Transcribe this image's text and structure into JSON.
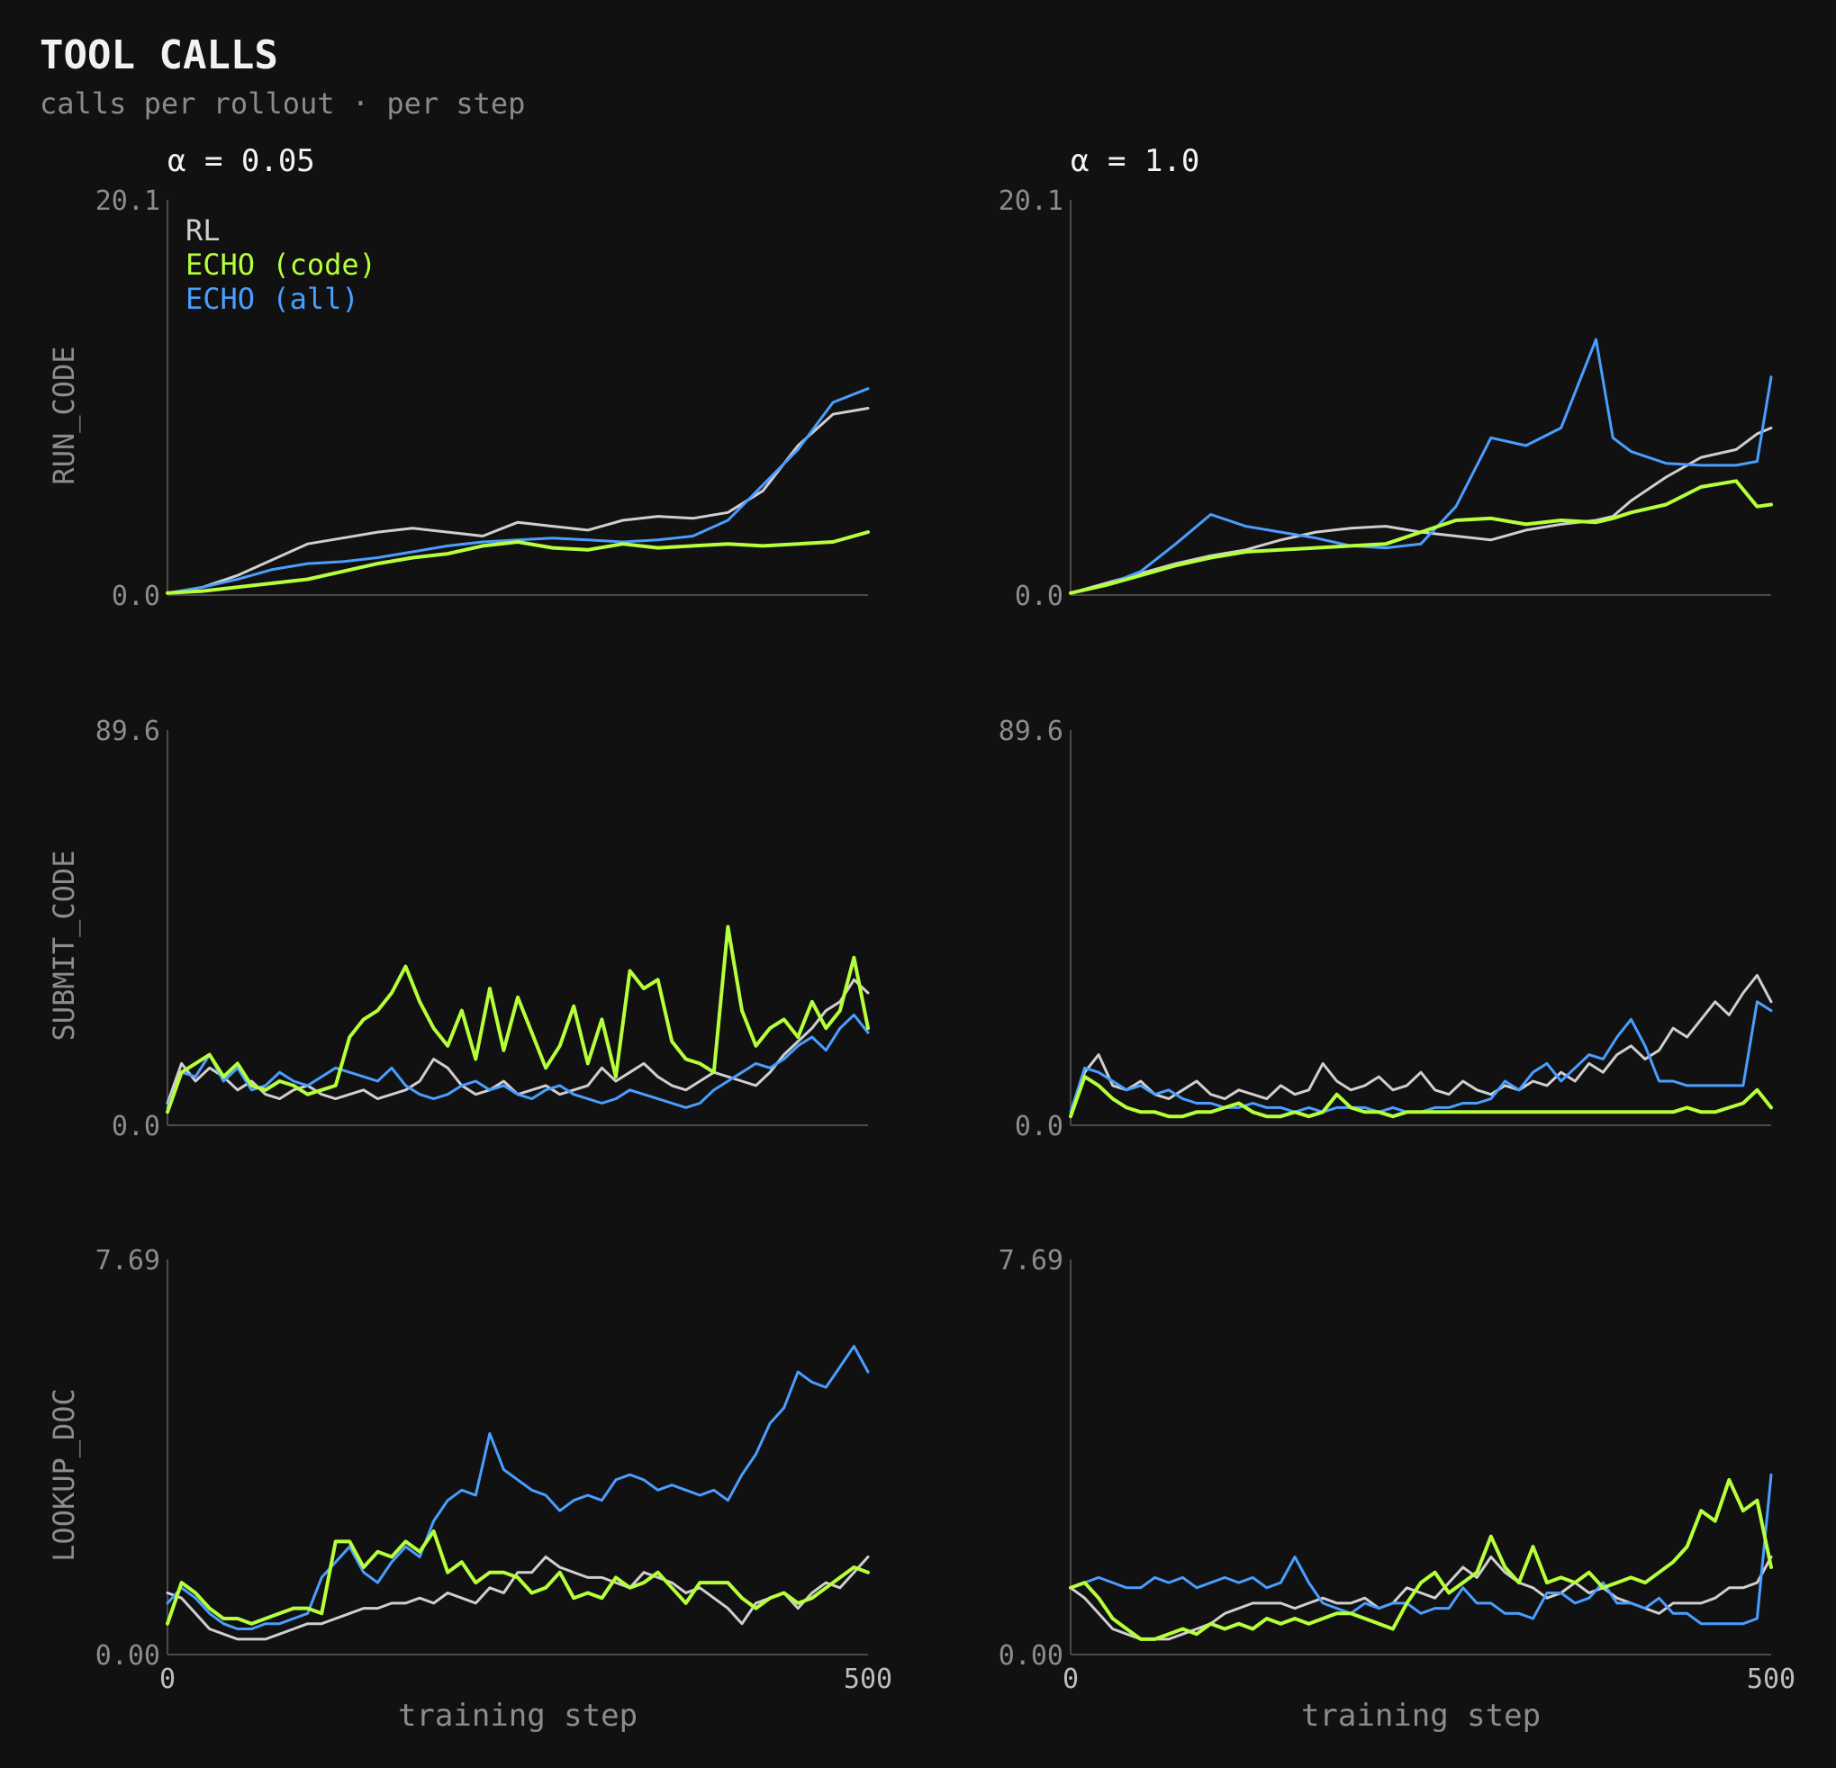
{
  "header": {
    "title": "TOOL CALLS",
    "subtitle": "calls per rollout · per step"
  },
  "colors": {
    "background": "#111111",
    "RL": "#cfcfcf",
    "ECHO (code)": "#b6ff3b",
    "ECHO (all)": "#4a9eff"
  },
  "legend": {
    "position": "top-left",
    "items": [
      "RL",
      "ECHO (code)",
      "ECHO (all)"
    ]
  },
  "chart_data": [
    {
      "type": "line",
      "col_title": "α = 0.05",
      "ylabel": "RUN_CODE",
      "xlabel": "",
      "xlim": [
        0,
        500
      ],
      "ylim": [
        0,
        20.1
      ],
      "xticks": [
        "0",
        "500"
      ],
      "yticks": [
        "0.0",
        "20.1"
      ],
      "x": [
        0,
        25,
        50,
        75,
        100,
        125,
        150,
        175,
        200,
        225,
        250,
        275,
        300,
        325,
        350,
        375,
        400,
        425,
        450,
        475,
        500
      ],
      "series": [
        {
          "name": "RL",
          "values": [
            0.1,
            0.4,
            1.0,
            1.8,
            2.6,
            2.9,
            3.2,
            3.4,
            3.2,
            3.0,
            3.7,
            3.5,
            3.3,
            3.8,
            4.0,
            3.9,
            4.2,
            5.3,
            7.6,
            9.2,
            9.5
          ]
        },
        {
          "name": "ECHO (code)",
          "values": [
            0.1,
            0.2,
            0.4,
            0.6,
            0.8,
            1.2,
            1.6,
            1.9,
            2.1,
            2.5,
            2.7,
            2.4,
            2.3,
            2.6,
            2.4,
            2.5,
            2.6,
            2.5,
            2.6,
            2.7,
            3.2
          ]
        },
        {
          "name": "ECHO (all)",
          "values": [
            0.1,
            0.4,
            0.8,
            1.3,
            1.6,
            1.7,
            1.9,
            2.2,
            2.5,
            2.7,
            2.8,
            2.9,
            2.8,
            2.7,
            2.8,
            3.0,
            3.8,
            5.6,
            7.4,
            9.8,
            10.5
          ]
        }
      ]
    },
    {
      "type": "line",
      "col_title": "α = 1.0",
      "ylabel": "",
      "xlabel": "",
      "xlim": [
        0,
        500
      ],
      "ylim": [
        0,
        20.1
      ],
      "xticks": [
        "0",
        "500"
      ],
      "yticks": [
        "0.0",
        "20.1"
      ],
      "x": [
        0,
        25,
        50,
        75,
        100,
        125,
        150,
        175,
        200,
        225,
        250,
        275,
        300,
        325,
        350,
        375,
        387,
        400,
        425,
        450,
        475,
        490,
        500
      ],
      "series": [
        {
          "name": "RL",
          "values": [
            0.1,
            0.6,
            1.1,
            1.6,
            2.0,
            2.3,
            2.8,
            3.2,
            3.4,
            3.5,
            3.2,
            3.0,
            2.8,
            3.3,
            3.6,
            3.8,
            4.0,
            4.8,
            6.0,
            7.0,
            7.4,
            8.2,
            8.5
          ]
        },
        {
          "name": "ECHO (code)",
          "values": [
            0.1,
            0.5,
            1.0,
            1.5,
            1.9,
            2.2,
            2.3,
            2.4,
            2.5,
            2.6,
            3.2,
            3.8,
            3.9,
            3.6,
            3.8,
            3.7,
            3.9,
            4.2,
            4.6,
            5.5,
            5.8,
            4.5,
            4.6
          ]
        },
        {
          "name": "ECHO (all)",
          "values": [
            0.1,
            0.5,
            1.2,
            2.6,
            4.1,
            3.5,
            3.2,
            2.9,
            2.5,
            2.4,
            2.6,
            4.5,
            8.0,
            7.6,
            8.5,
            13.0,
            8.0,
            7.3,
            6.7,
            6.6,
            6.6,
            6.8,
            11.1
          ]
        }
      ]
    },
    {
      "type": "line",
      "col_title": "",
      "ylabel": "SUBMIT_CODE",
      "xlabel": "",
      "xlim": [
        0,
        500
      ],
      "ylim": [
        0,
        89.6
      ],
      "xticks": [
        "0",
        "500"
      ],
      "yticks": [
        "0.0",
        "89.6"
      ],
      "x": [
        0,
        10,
        20,
        30,
        40,
        50,
        60,
        70,
        80,
        90,
        100,
        110,
        120,
        130,
        140,
        150,
        160,
        170,
        180,
        190,
        200,
        210,
        220,
        230,
        240,
        250,
        260,
        270,
        280,
        290,
        300,
        310,
        320,
        330,
        340,
        350,
        360,
        370,
        380,
        390,
        400,
        410,
        420,
        430,
        440,
        450,
        460,
        470,
        480,
        490,
        500
      ],
      "series": [
        {
          "name": "RL",
          "values": [
            5,
            14,
            10,
            13,
            11,
            8,
            10,
            7,
            6,
            8,
            9,
            7,
            6,
            7,
            8,
            6,
            7,
            8,
            10,
            15,
            13,
            9,
            7,
            8,
            10,
            7,
            8,
            9,
            7,
            8,
            9,
            13,
            10,
            12,
            14,
            11,
            9,
            8,
            10,
            12,
            11,
            10,
            9,
            12,
            16,
            19,
            22,
            26,
            28,
            33,
            30
          ]
        },
        {
          "name": "ECHO (code)",
          "values": [
            3,
            12,
            14,
            16,
            11,
            14,
            9,
            8,
            10,
            9,
            7,
            8,
            9,
            20,
            24,
            26,
            30,
            36,
            28,
            22,
            18,
            26,
            15,
            31,
            17,
            29,
            21,
            13,
            18,
            27,
            14,
            24,
            11,
            35,
            31,
            33,
            19,
            15,
            14,
            12,
            45,
            26,
            18,
            22,
            24,
            20,
            28,
            22,
            26,
            38,
            22
          ]
        },
        {
          "name": "ECHO (all)",
          "values": [
            4,
            12,
            11,
            16,
            10,
            13,
            8,
            9,
            12,
            10,
            9,
            11,
            13,
            12,
            11,
            10,
            13,
            9,
            7,
            6,
            7,
            9,
            10,
            8,
            9,
            7,
            6,
            8,
            9,
            7,
            6,
            5,
            6,
            8,
            7,
            6,
            5,
            4,
            5,
            8,
            10,
            12,
            14,
            13,
            15,
            18,
            20,
            17,
            22,
            25,
            21
          ]
        }
      ]
    },
    {
      "type": "line",
      "col_title": "",
      "ylabel": "",
      "xlabel": "",
      "xlim": [
        0,
        500
      ],
      "ylim": [
        0,
        89.6
      ],
      "xticks": [
        "0",
        "500"
      ],
      "yticks": [
        "0.0",
        "89.6"
      ],
      "x": [
        0,
        10,
        20,
        30,
        40,
        50,
        60,
        70,
        80,
        90,
        100,
        110,
        120,
        130,
        140,
        150,
        160,
        170,
        180,
        190,
        200,
        210,
        220,
        230,
        240,
        250,
        260,
        270,
        280,
        290,
        300,
        310,
        320,
        330,
        340,
        350,
        360,
        370,
        380,
        390,
        400,
        410,
        420,
        430,
        440,
        450,
        460,
        470,
        480,
        490,
        500
      ],
      "series": [
        {
          "name": "RL",
          "values": [
            2,
            12,
            16,
            9,
            8,
            10,
            7,
            6,
            8,
            10,
            7,
            6,
            8,
            7,
            6,
            9,
            7,
            8,
            14,
            10,
            8,
            9,
            11,
            8,
            9,
            12,
            8,
            7,
            10,
            8,
            7,
            9,
            8,
            10,
            9,
            12,
            10,
            14,
            12,
            16,
            18,
            15,
            17,
            22,
            20,
            24,
            28,
            25,
            30,
            34,
            28
          ]
        },
        {
          "name": "ECHO (code)",
          "values": [
            2,
            11,
            9,
            6,
            4,
            3,
            3,
            2,
            2,
            3,
            3,
            4,
            5,
            3,
            2,
            2,
            3,
            2,
            3,
            7,
            4,
            3,
            3,
            2,
            3,
            3,
            3,
            3,
            3,
            3,
            3,
            3,
            3,
            3,
            3,
            3,
            3,
            3,
            3,
            3,
            3,
            3,
            3,
            3,
            4,
            3,
            3,
            4,
            5,
            8,
            4
          ]
        },
        {
          "name": "ECHO (all)",
          "values": [
            3,
            13,
            12,
            10,
            8,
            9,
            7,
            8,
            6,
            5,
            5,
            4,
            4,
            5,
            4,
            4,
            3,
            4,
            3,
            4,
            4,
            4,
            3,
            4,
            3,
            3,
            4,
            4,
            5,
            5,
            6,
            10,
            8,
            12,
            14,
            10,
            13,
            16,
            15,
            20,
            24,
            18,
            10,
            10,
            9,
            9,
            9,
            9,
            9,
            28,
            26
          ]
        }
      ]
    },
    {
      "type": "line",
      "col_title": "",
      "ylabel": "LOOKUP_DOC",
      "xlabel": "training step",
      "xlim": [
        0,
        500
      ],
      "ylim": [
        0,
        7.69
      ],
      "xticks": [
        "0",
        "500"
      ],
      "yticks": [
        "0.00",
        "7.69"
      ],
      "x": [
        0,
        10,
        20,
        30,
        40,
        50,
        60,
        70,
        80,
        90,
        100,
        110,
        120,
        130,
        140,
        150,
        160,
        170,
        180,
        190,
        200,
        210,
        220,
        230,
        240,
        250,
        260,
        270,
        280,
        290,
        300,
        310,
        320,
        330,
        340,
        350,
        360,
        370,
        380,
        390,
        400,
        410,
        420,
        430,
        440,
        450,
        460,
        470,
        480,
        490,
        500
      ],
      "series": [
        {
          "name": "RL",
          "values": [
            1.2,
            1.1,
            0.8,
            0.5,
            0.4,
            0.3,
            0.3,
            0.3,
            0.4,
            0.5,
            0.6,
            0.6,
            0.7,
            0.8,
            0.9,
            0.9,
            1.0,
            1.0,
            1.1,
            1.0,
            1.2,
            1.1,
            1.0,
            1.3,
            1.2,
            1.6,
            1.6,
            1.9,
            1.7,
            1.6,
            1.5,
            1.5,
            1.4,
            1.3,
            1.6,
            1.5,
            1.4,
            1.2,
            1.3,
            1.1,
            0.9,
            0.6,
            1.0,
            1.1,
            1.2,
            0.9,
            1.2,
            1.4,
            1.3,
            1.6,
            1.9
          ]
        },
        {
          "name": "ECHO (code)",
          "values": [
            0.6,
            1.4,
            1.2,
            0.9,
            0.7,
            0.7,
            0.6,
            0.7,
            0.8,
            0.9,
            0.9,
            0.8,
            2.2,
            2.2,
            1.7,
            2.0,
            1.9,
            2.2,
            2.0,
            2.4,
            1.6,
            1.8,
            1.4,
            1.6,
            1.6,
            1.5,
            1.2,
            1.3,
            1.6,
            1.1,
            1.2,
            1.1,
            1.5,
            1.3,
            1.4,
            1.6,
            1.3,
            1.0,
            1.4,
            1.4,
            1.4,
            1.1,
            0.9,
            1.1,
            1.2,
            1.0,
            1.1,
            1.3,
            1.5,
            1.7,
            1.6
          ]
        },
        {
          "name": "ECHO (all)",
          "values": [
            1.0,
            1.3,
            1.1,
            0.8,
            0.6,
            0.5,
            0.5,
            0.6,
            0.6,
            0.7,
            0.8,
            1.5,
            1.8,
            2.1,
            1.6,
            1.4,
            1.8,
            2.1,
            1.9,
            2.6,
            3.0,
            3.2,
            3.1,
            4.3,
            3.6,
            3.4,
            3.2,
            3.1,
            2.8,
            3.0,
            3.1,
            3.0,
            3.4,
            3.5,
            3.4,
            3.2,
            3.3,
            3.2,
            3.1,
            3.2,
            3.0,
            3.5,
            3.9,
            4.5,
            4.8,
            5.5,
            5.3,
            5.2,
            5.6,
            6.0,
            5.5
          ]
        }
      ]
    },
    {
      "type": "line",
      "col_title": "",
      "ylabel": "",
      "xlabel": "training step",
      "xlim": [
        0,
        500
      ],
      "ylim": [
        0,
        7.69
      ],
      "xticks": [
        "0",
        "500"
      ],
      "yticks": [
        "0.00",
        "7.69"
      ],
      "x": [
        0,
        10,
        20,
        30,
        40,
        50,
        60,
        70,
        80,
        90,
        100,
        110,
        120,
        130,
        140,
        150,
        160,
        170,
        180,
        190,
        200,
        210,
        220,
        230,
        240,
        250,
        260,
        270,
        280,
        290,
        300,
        310,
        320,
        330,
        340,
        350,
        360,
        370,
        380,
        390,
        400,
        410,
        420,
        430,
        440,
        450,
        460,
        470,
        480,
        490,
        500
      ],
      "series": [
        {
          "name": "RL",
          "values": [
            1.3,
            1.1,
            0.8,
            0.5,
            0.4,
            0.3,
            0.3,
            0.3,
            0.4,
            0.5,
            0.6,
            0.8,
            0.9,
            1.0,
            1.0,
            1.0,
            0.9,
            1.0,
            1.1,
            1.0,
            1.0,
            1.1,
            0.9,
            1.0,
            1.3,
            1.2,
            1.1,
            1.4,
            1.7,
            1.5,
            1.9,
            1.6,
            1.4,
            1.3,
            1.1,
            1.2,
            1.4,
            1.2,
            1.3,
            1.1,
            1.0,
            0.9,
            0.8,
            1.0,
            1.0,
            1.0,
            1.1,
            1.3,
            1.3,
            1.4,
            1.9
          ]
        },
        {
          "name": "ECHO (code)",
          "values": [
            1.3,
            1.4,
            1.1,
            0.7,
            0.5,
            0.3,
            0.3,
            0.4,
            0.5,
            0.4,
            0.6,
            0.5,
            0.6,
            0.5,
            0.7,
            0.6,
            0.7,
            0.6,
            0.7,
            0.8,
            0.8,
            0.7,
            0.6,
            0.5,
            1.0,
            1.4,
            1.6,
            1.2,
            1.4,
            1.6,
            2.3,
            1.7,
            1.4,
            2.1,
            1.4,
            1.5,
            1.4,
            1.6,
            1.3,
            1.4,
            1.5,
            1.4,
            1.6,
            1.8,
            2.1,
            2.8,
            2.6,
            3.4,
            2.8,
            3.0,
            1.7
          ]
        },
        {
          "name": "ECHO (all)",
          "values": [
            1.3,
            1.4,
            1.5,
            1.4,
            1.3,
            1.3,
            1.5,
            1.4,
            1.5,
            1.3,
            1.4,
            1.5,
            1.4,
            1.5,
            1.3,
            1.4,
            1.9,
            1.4,
            1.0,
            0.9,
            0.8,
            1.0,
            0.9,
            1.0,
            1.0,
            0.8,
            0.9,
            0.9,
            1.3,
            1.0,
            1.0,
            0.8,
            0.8,
            0.7,
            1.2,
            1.2,
            1.0,
            1.1,
            1.4,
            1.0,
            1.0,
            0.9,
            1.1,
            0.8,
            0.8,
            0.6,
            0.6,
            0.6,
            0.6,
            0.7,
            3.5
          ]
        }
      ]
    }
  ]
}
